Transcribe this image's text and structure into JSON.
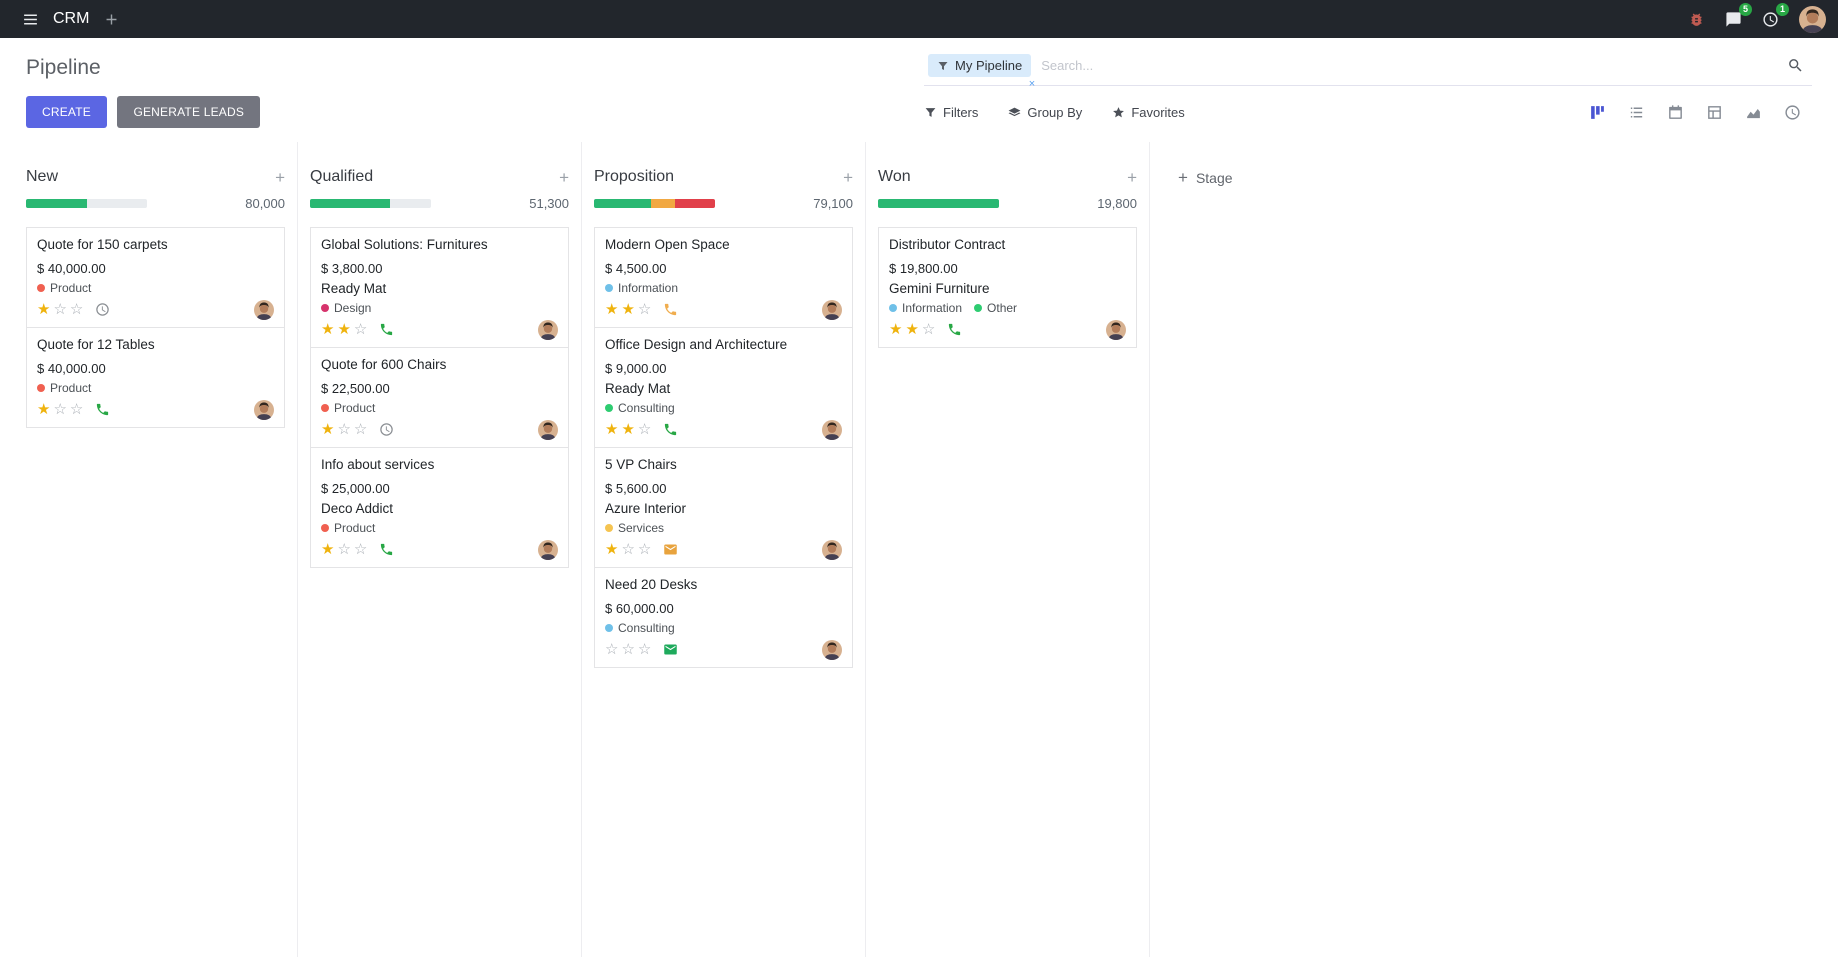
{
  "topbar": {
    "app_name": "CRM",
    "messages_badge": "5",
    "activities_badge": "1"
  },
  "control_panel": {
    "title": "Pipeline",
    "search": {
      "facet_label": "My Pipeline",
      "remove_facet": "×",
      "placeholder": "Search..."
    },
    "create_label": "CREATE",
    "generate_leads_label": "GENERATE LEADS",
    "filters_label": "Filters",
    "group_by_label": "Group By",
    "favorites_label": "Favorites"
  },
  "icons": {
    "plus": "+",
    "star_filled": "★",
    "star_empty": "☆"
  },
  "colors": {
    "primary": "#5b66e3",
    "success": "#29b872",
    "warning": "#f1a842",
    "danger": "#e1404a"
  },
  "kanban": {
    "add_stage_label": "Stage",
    "columns": [
      {
        "name": "New",
        "total": "80,000",
        "progress": [
          {
            "color": "#29b872",
            "pct": 50
          }
        ],
        "cards": [
          {
            "title": "Quote for 150 carpets",
            "amount": "$ 40,000.00",
            "tags": [
              {
                "label": "Product",
                "color": "#f06050"
              }
            ],
            "stars": 1,
            "activity": {
              "icon": "clock-icon",
              "color": "#8b8f94"
            }
          },
          {
            "title": "Quote for 12 Tables",
            "amount": "$ 40,000.00",
            "tags": [
              {
                "label": "Product",
                "color": "#f06050"
              }
            ],
            "stars": 1,
            "activity": {
              "icon": "phone-icon",
              "color": "#28a745"
            }
          }
        ]
      },
      {
        "name": "Qualified",
        "total": "51,300",
        "progress": [
          {
            "color": "#29b872",
            "pct": 66
          }
        ],
        "cards": [
          {
            "title": "Global Solutions: Furnitures",
            "amount": "$ 3,800.00",
            "partner": "Ready Mat",
            "tags": [
              {
                "label": "Design",
                "color": "#d6336c"
              }
            ],
            "stars": 2,
            "activity": {
              "icon": "phone-icon",
              "color": "#28a745"
            }
          },
          {
            "title": "Quote for 600 Chairs",
            "amount": "$ 22,500.00",
            "tags": [
              {
                "label": "Product",
                "color": "#f06050"
              }
            ],
            "stars": 1,
            "activity": {
              "icon": "clock-icon",
              "color": "#8b8f94"
            }
          },
          {
            "title": "Info about services",
            "amount": "$ 25,000.00",
            "partner": "Deco Addict",
            "tags": [
              {
                "label": "Product",
                "color": "#f06050"
              }
            ],
            "stars": 1,
            "activity": {
              "icon": "phone-icon",
              "color": "#28a745"
            }
          }
        ]
      },
      {
        "name": "Proposition",
        "total": "79,100",
        "progress": [
          {
            "color": "#29b872",
            "pct": 47
          },
          {
            "color": "#f1a842",
            "pct": 20
          },
          {
            "color": "#e1404a",
            "pct": 33
          }
        ],
        "cards": [
          {
            "title": "Modern Open Space",
            "amount": "$ 4,500.00",
            "tags": [
              {
                "label": "Information",
                "color": "#6fc0e8"
              }
            ],
            "stars": 2,
            "activity": {
              "icon": "phone-icon",
              "color": "#f0ad4e"
            }
          },
          {
            "title": "Office Design and Architecture",
            "amount": "$ 9,000.00",
            "partner": "Ready Mat",
            "tags": [
              {
                "label": "Consulting",
                "color": "#2ecc71"
              }
            ],
            "stars": 2,
            "activity": {
              "icon": "phone-icon",
              "color": "#28a745"
            }
          },
          {
            "title": "5 VP Chairs",
            "amount": "$ 5,600.00",
            "partner": "Azure Interior",
            "tags": [
              {
                "label": "Services",
                "color": "#f5c451"
              }
            ],
            "stars": 1,
            "activity": {
              "icon": "envelope-icon",
              "color": "#e8a33d"
            }
          },
          {
            "title": "Need 20 Desks",
            "amount": "$ 60,000.00",
            "tags": [
              {
                "label": "Consulting",
                "color": "#6fc0e8"
              }
            ],
            "stars": 0,
            "activity": {
              "icon": "envelope-icon",
              "color": "#1eaa5c"
            }
          }
        ]
      },
      {
        "name": "Won",
        "total": "19,800",
        "progress": [
          {
            "color": "#29b872",
            "pct": 100
          }
        ],
        "cards": [
          {
            "title": "Distributor Contract",
            "amount": "$ 19,800.00",
            "partner": "Gemini Furniture",
            "tags": [
              {
                "label": "Information",
                "color": "#6fc0e8"
              },
              {
                "label": "Other",
                "color": "#2ecc71"
              }
            ],
            "stars": 2,
            "activity": {
              "icon": "phone-icon",
              "color": "#28a745"
            }
          }
        ]
      }
    ]
  }
}
